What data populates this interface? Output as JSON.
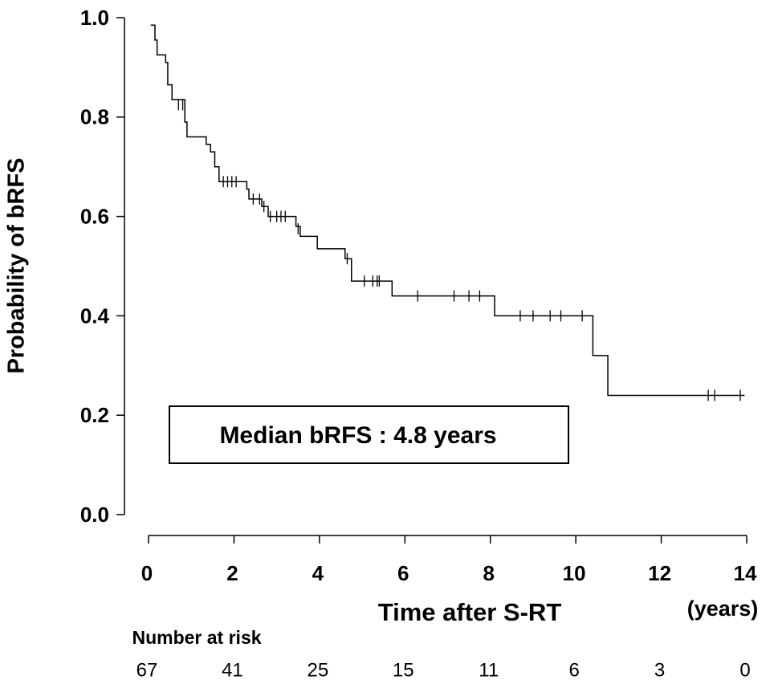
{
  "chart_data": {
    "type": "km",
    "y_label": "Probability of bRFS",
    "x_label": "Time after S-RT",
    "x_unit": "(years)",
    "annotation": "Median bRFS : 4.8 years",
    "xlim": [
      0,
      14
    ],
    "ylim": [
      0,
      1
    ],
    "xticks": [
      0,
      2,
      4,
      6,
      8,
      10,
      12,
      14
    ],
    "yticks": [
      {
        "value": 0,
        "label": "0.0"
      },
      {
        "value": 0.2,
        "label": "0.2"
      },
      {
        "value": 0.4,
        "label": "0.4"
      },
      {
        "value": 0.6,
        "label": "0.6"
      },
      {
        "value": 0.8,
        "label": "0.8"
      },
      {
        "value": 1,
        "label": "1.0"
      }
    ],
    "color": "#000000",
    "steps": {
      "x": [
        0.05,
        0.15,
        0.2,
        0.4,
        0.45,
        0.55,
        0.85,
        0.9,
        1.35,
        1.45,
        1.55,
        1.65,
        2.3,
        2.35,
        2.65,
        2.8,
        3.45,
        3.55,
        3.95,
        4.6,
        4.75,
        5.7,
        8.1,
        10.4,
        10.75,
        13.95
      ],
      "values": [
        0.985,
        0.955,
        0.925,
        0.91,
        0.865,
        0.835,
        0.79,
        0.76,
        0.745,
        0.73,
        0.7,
        0.67,
        0.655,
        0.635,
        0.62,
        0.6,
        0.58,
        0.56,
        0.535,
        0.515,
        0.47,
        0.44,
        0.4,
        0.32,
        0.24,
        0.24
      ]
    },
    "censored": {
      "x": [
        0.7,
        0.8,
        1.75,
        1.85,
        1.95,
        2.05,
        2.45,
        2.6,
        2.7,
        2.85,
        3.0,
        3.1,
        3.2,
        3.5,
        4.65,
        5.05,
        5.25,
        5.35,
        5.4,
        6.3,
        7.15,
        7.5,
        7.75,
        8.7,
        9.0,
        9.4,
        9.65,
        10.15,
        13.1,
        13.25,
        13.85
      ],
      "values": [
        0.825,
        0.825,
        0.67,
        0.67,
        0.67,
        0.67,
        0.635,
        0.635,
        0.62,
        0.6,
        0.6,
        0.6,
        0.6,
        0.575,
        0.515,
        0.47,
        0.47,
        0.47,
        0.47,
        0.44,
        0.44,
        0.44,
        0.44,
        0.4,
        0.4,
        0.4,
        0.4,
        0.4,
        0.24,
        0.24,
        0.24
      ]
    },
    "risk_table": {
      "label": "Number at risk",
      "counts": [
        67,
        41,
        25,
        15,
        11,
        6,
        3,
        0
      ]
    }
  }
}
